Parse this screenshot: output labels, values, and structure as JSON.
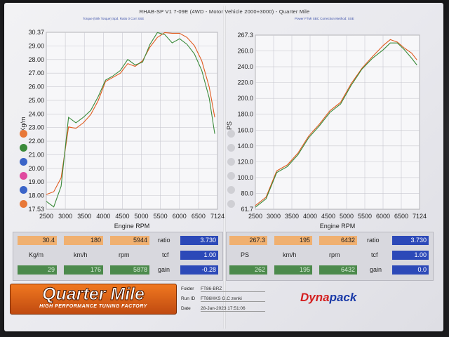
{
  "title": "RHAB-SP V1 7-09E  (4WD - Motor Vehicle 2000+3000) - Quarter Mile",
  "legend_left": "Torque (kirik Torque) Spd. Ratio  0  Corr SSE",
  "legend_right": "Power FTMI SBC     Correction Method: SSE",
  "chart_data": [
    {
      "type": "line",
      "side": "torque",
      "ylabel": "Kg/m",
      "xlabel": "Engine RPM",
      "x_ticks": [
        "2500",
        "3000",
        "3500",
        "4000",
        "4500",
        "5000",
        "5500",
        "6000",
        "6500",
        "7124"
      ],
      "y_ticks": [
        "30.37",
        "29.00",
        "28.00",
        "27.00",
        "26.00",
        "25.00",
        "24.00",
        "23.00",
        "22.00",
        "21.00",
        "20.00",
        "19.00",
        "18.00",
        "17.53"
      ],
      "xlim": [
        2500,
        7124
      ],
      "ylim": [
        17.53,
        30.37
      ],
      "series": [
        {
          "color": "#e05a1e",
          "x": [
            2500,
            2700,
            2900,
            3100,
            3300,
            3500,
            3700,
            3900,
            4100,
            4300,
            4500,
            4700,
            4900,
            5100,
            5300,
            5500,
            5700,
            5900,
            6100,
            6300,
            6500,
            6700,
            6900,
            7050
          ],
          "y": [
            18.6,
            18.8,
            19.8,
            23.5,
            23.4,
            23.8,
            24.4,
            25.4,
            26.8,
            27.1,
            27.4,
            28.1,
            27.9,
            28.3,
            29.3,
            30.0,
            30.35,
            30.3,
            30.3,
            30.0,
            29.4,
            28.3,
            26.4,
            24.2
          ]
        },
        {
          "color": "#3a8a3a",
          "x": [
            2500,
            2700,
            2900,
            3100,
            3300,
            3500,
            3700,
            3900,
            4100,
            4300,
            4500,
            4700,
            4900,
            5100,
            5300,
            5500,
            5700,
            5900,
            6100,
            6300,
            6500,
            6700,
            6900,
            7050
          ],
          "y": [
            18.1,
            17.7,
            19.2,
            24.2,
            23.8,
            24.2,
            24.7,
            25.7,
            26.9,
            27.2,
            27.6,
            28.4,
            28.0,
            28.2,
            29.5,
            30.35,
            30.2,
            29.6,
            29.9,
            29.5,
            28.8,
            27.6,
            25.6,
            23.0
          ]
        }
      ]
    },
    {
      "type": "line",
      "side": "power",
      "ylabel": "PS",
      "xlabel": "Engine RPM",
      "x_ticks": [
        "2500",
        "3000",
        "3500",
        "4000",
        "4500",
        "5000",
        "5500",
        "6000",
        "6500",
        "7124"
      ],
      "y_ticks": [
        "267.3",
        "260.0",
        "240.0",
        "220.0",
        "200.0",
        "180.0",
        "160.0",
        "140.0",
        "120.0",
        "100.0",
        "80.0",
        "61.7"
      ],
      "xlim": [
        2500,
        7124
      ],
      "ylim": [
        61.7,
        267.3
      ],
      "series": [
        {
          "color": "#e05a1e",
          "x": [
            2500,
            2800,
            3100,
            3400,
            3700,
            4000,
            4300,
            4600,
            4900,
            5200,
            5500,
            5800,
            6100,
            6300,
            6500,
            6700,
            6900,
            7050
          ],
          "y": [
            66,
            76,
            107,
            114,
            128,
            148,
            162,
            178,
            188,
            210,
            228,
            242,
            255,
            262,
            259,
            252,
            246,
            238
          ]
        },
        {
          "color": "#3a8a3a",
          "x": [
            2500,
            2800,
            3100,
            3400,
            3700,
            4000,
            4300,
            4600,
            4900,
            5200,
            5500,
            5800,
            6100,
            6300,
            6500,
            6700,
            6900,
            7050
          ],
          "y": [
            64,
            74,
            105,
            112,
            126,
            146,
            160,
            176,
            186,
            208,
            227,
            240,
            250,
            258,
            258,
            250,
            240,
            232
          ]
        }
      ]
    }
  ],
  "legend_dot_colors": [
    "#e87838",
    "#3a8a3a",
    "#3a64c8",
    "#e04aa0",
    "#3a64c8",
    "#e87838"
  ],
  "left_panel": {
    "max_torque": "30.4",
    "max_kmh": "180",
    "max_rpm": "5944",
    "ratio_label": "ratio",
    "ratio_value": "3.730",
    "unit_kgm": "Kg/m",
    "unit_kmh": "km/h",
    "unit_rpm": "rpm",
    "tcf_label": "tcf",
    "tcf_value": "1.00",
    "r2_torque": "29",
    "r2_kmh": "176",
    "r2_rpm": "5878",
    "gain_label": "gain",
    "gain_value": "-0.28"
  },
  "right_panel": {
    "max_power": "267.3",
    "max_kmh": "195",
    "max_rpm": "6432",
    "ratio_label": "ratio",
    "ratio_value": "3.730",
    "unit_ps": "PS",
    "unit_kmh": "km/h",
    "unit_rpm": "rpm",
    "tcf_label": "tcf",
    "tcf_value": "1.00",
    "r2_power": "262",
    "r2_kmh": "195",
    "r2_rpm": "6432",
    "gain_label": "gain",
    "gain_value": "0.0"
  },
  "footer": {
    "brand": "Quarter Mile",
    "tagline": "HIGH PERFORMANCE TUNING FACTORY",
    "folder_label": "Folder",
    "folder_value": "FT86-BRZ",
    "run_label": "Run ID",
    "run_value": "FT86HKS G.C zenki",
    "date_label": "Date",
    "date_value": "28-Jan-2023   17:51:06",
    "dyna_brand_a": "Dyna",
    "dyna_brand_b": "pack"
  }
}
